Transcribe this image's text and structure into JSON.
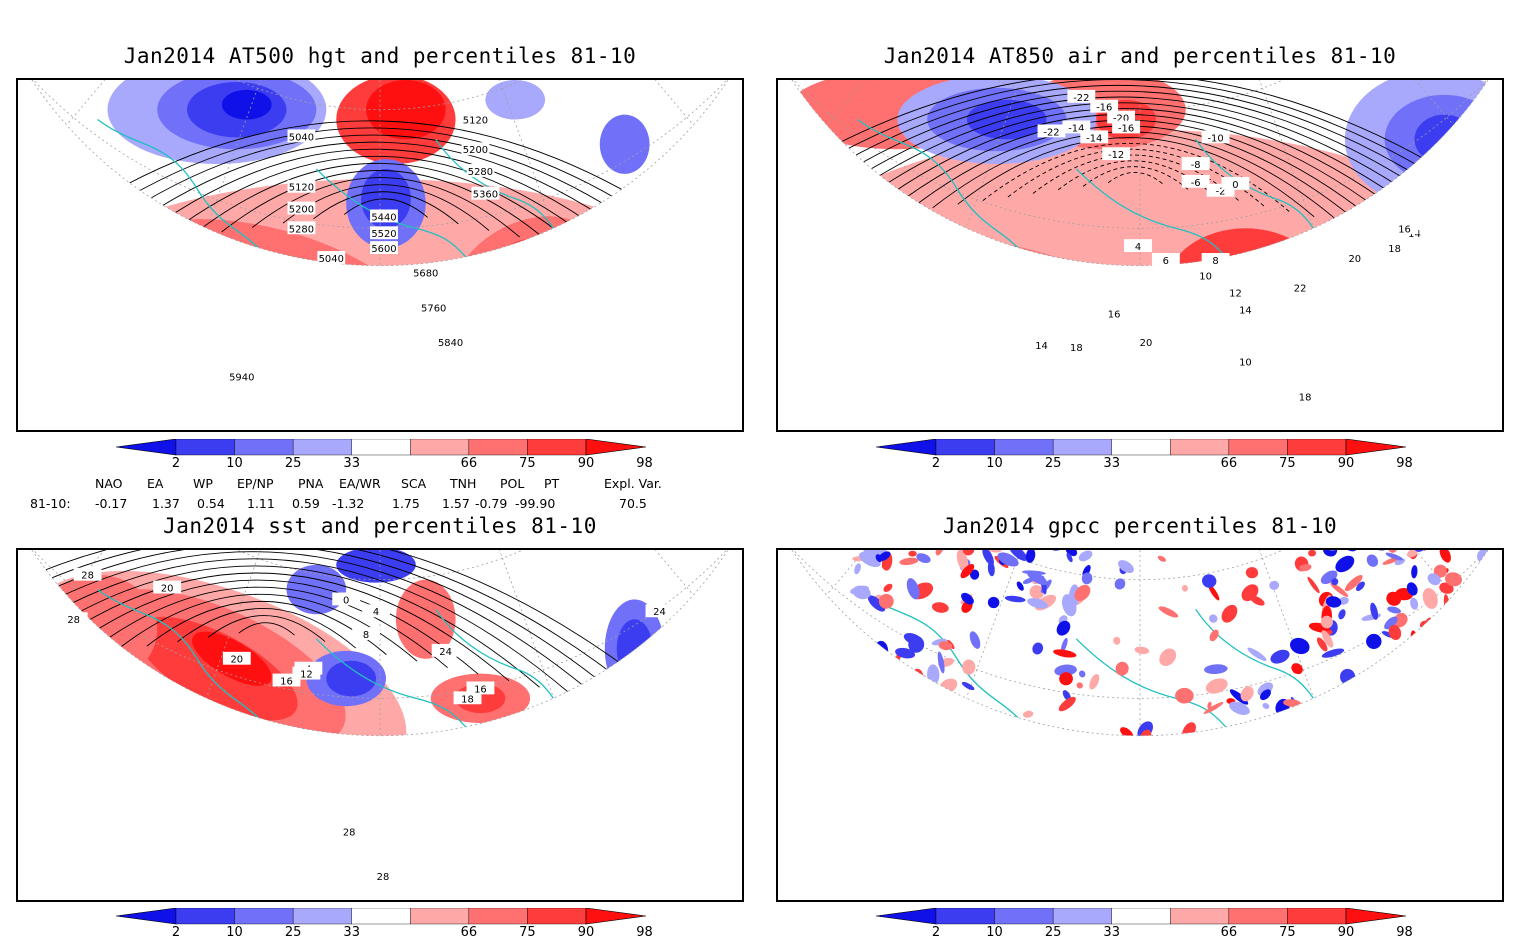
{
  "panels": [
    {
      "title": "Jan2014 AT500 hgt and percentiles 81-10",
      "contour_labels": [
        "5040",
        "5120",
        "5200",
        "5280",
        "5040",
        "5120",
        "5200",
        "5280",
        "5360",
        "5440",
        "5520",
        "5600",
        "5680",
        "5760",
        "5840",
        "5940"
      ]
    },
    {
      "title": "Jan2014 AT850 air and percentiles 81-10",
      "contour_labels": [
        "-22",
        "-16",
        "-22",
        "-14",
        "-20",
        "-14",
        "-16",
        "-12",
        "-10",
        "-8",
        "-6",
        "-2",
        "0",
        "4",
        "6",
        "8",
        "10",
        "12",
        "14",
        "16",
        "18",
        "20",
        "22",
        "14",
        "16",
        "18",
        "20",
        "10",
        "14",
        "18"
      ]
    },
    {
      "title": "Jan2014 sst and percentiles 81-10",
      "contour_labels": [
        "28",
        "20",
        "28",
        "20",
        "4",
        "8",
        "4",
        "0",
        "12",
        "16",
        "18",
        "16",
        "24",
        "24",
        "28",
        "28"
      ]
    },
    {
      "title": "Jan2014 gpcc percentiles 81-10",
      "contour_labels": []
    }
  ],
  "colorbar": {
    "colors": [
      "#1010e8",
      "#3c3cf0",
      "#7070f8",
      "#a8a8fc",
      "#ffffff",
      "#ffa8a8",
      "#ff7070",
      "#ff3c3c",
      "#ff1010"
    ],
    "ticks": [
      "2",
      "10",
      "25",
      "33",
      "66",
      "75",
      "90",
      "98"
    ]
  },
  "indices": {
    "headers": [
      "NAO",
      "EA",
      "WP",
      "EP/NP",
      "PNA",
      "EA/WR",
      "SCA",
      "TNH",
      "POL",
      "PT",
      "Expl. Var."
    ],
    "row_label": "81-10:",
    "values": [
      "-0.17",
      "1.37",
      "0.54",
      "1.11",
      "0.59",
      "-1.32",
      "1.75",
      "1.57",
      "-0.79",
      "-99.90",
      "70.5"
    ]
  },
  "colors": {
    "coast": "#20c0c0",
    "contour": "#000000",
    "grid": "#a0a0a0"
  }
}
